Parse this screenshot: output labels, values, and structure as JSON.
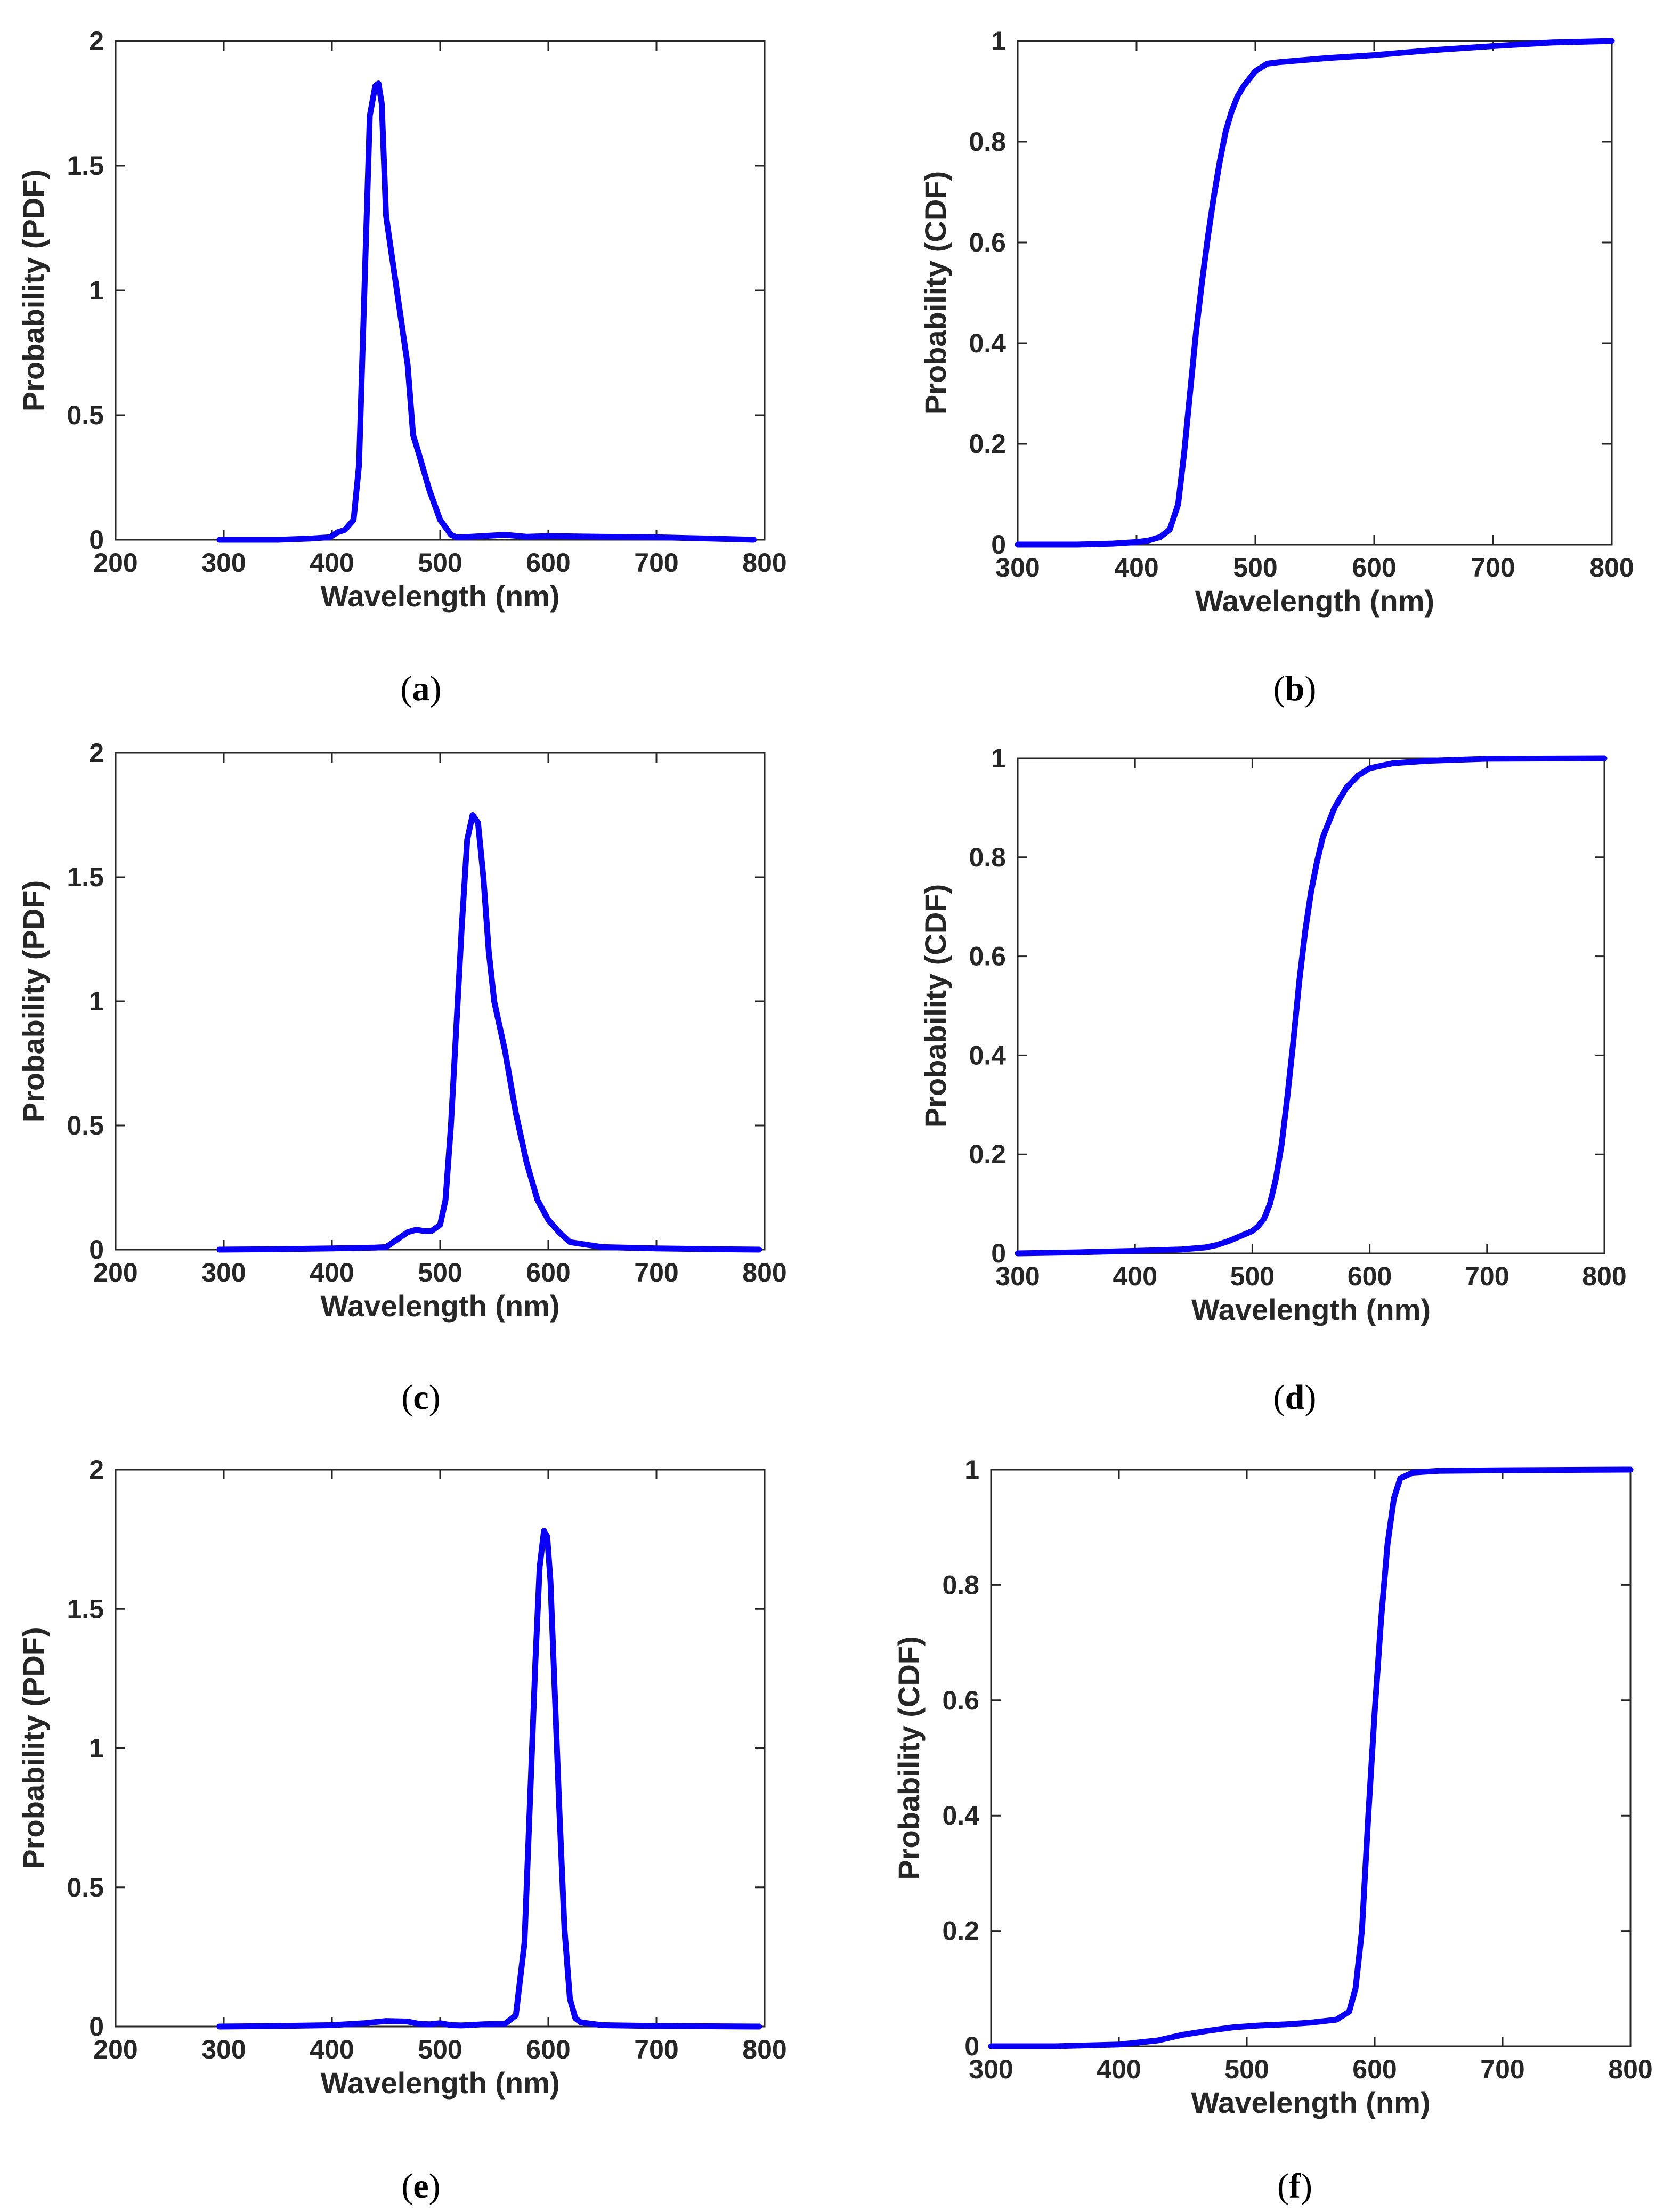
{
  "figure": {
    "panels": [
      {
        "id": "a",
        "caption": {
          "open": "(",
          "letter": "a",
          "close": ")"
        }
      },
      {
        "id": "b",
        "caption": {
          "open": "(",
          "letter": "b",
          "close": ")"
        }
      },
      {
        "id": "c",
        "caption": {
          "open": "(",
          "letter": "c",
          "close": ")"
        }
      },
      {
        "id": "d",
        "caption": {
          "open": "(",
          "letter": "d",
          "close": ")"
        }
      },
      {
        "id": "e",
        "caption": {
          "open": "(",
          "letter": "e",
          "close": ")"
        }
      },
      {
        "id": "f",
        "caption": {
          "open": "(",
          "letter": "f",
          "close": ")"
        }
      }
    ]
  },
  "style": {
    "line_color": "#0a00f5",
    "axis_color": "#262626"
  },
  "chart_data": [
    {
      "panel": "a",
      "type": "line",
      "xlabel": "Wavelength (nm)",
      "ylabel": "Probability (PDF)",
      "xlim": [
        200,
        800
      ],
      "ylim": [
        0,
        2
      ],
      "xticks": [
        200,
        300,
        400,
        500,
        600,
        700,
        800
      ],
      "yticks": [
        0,
        0.5,
        1,
        1.5,
        2
      ],
      "xtick_labels": [
        "200",
        "300",
        "400",
        "500",
        "600",
        "700",
        "800"
      ],
      "ytick_labels": [
        "0",
        "0.5",
        "1",
        "1.5",
        "2"
      ],
      "series": [
        {
          "name": "PDF",
          "x": [
            296,
            350,
            380,
            398,
            405,
            412,
            420,
            425,
            430,
            435,
            440,
            443,
            446,
            450,
            455,
            460,
            465,
            470,
            475,
            480,
            490,
            500,
            510,
            515,
            520,
            540,
            560,
            580,
            600,
            650,
            700,
            750,
            790
          ],
          "y": [
            0.0,
            0.0,
            0.005,
            0.01,
            0.03,
            0.04,
            0.08,
            0.3,
            1.0,
            1.7,
            1.82,
            1.83,
            1.75,
            1.3,
            1.15,
            1.0,
            0.85,
            0.7,
            0.42,
            0.35,
            0.2,
            0.08,
            0.02,
            0.01,
            0.01,
            0.015,
            0.02,
            0.012,
            0.015,
            0.012,
            0.01,
            0.005,
            0.0
          ]
        }
      ]
    },
    {
      "panel": "b",
      "type": "line",
      "xlabel": "Wavelength (nm)",
      "ylabel": "Probability (CDF)",
      "xlim": [
        300,
        800
      ],
      "ylim": [
        0,
        1
      ],
      "xticks": [
        300,
        400,
        500,
        600,
        700,
        800
      ],
      "yticks": [
        0,
        0.2,
        0.4,
        0.6,
        0.8,
        1
      ],
      "xtick_labels": [
        "300",
        "400",
        "500",
        "600",
        "700",
        "800"
      ],
      "ytick_labels": [
        "0",
        "0.2",
        "0.4",
        "0.6",
        "0.8",
        "1"
      ],
      "series": [
        {
          "name": "CDF",
          "x": [
            300,
            350,
            380,
            400,
            410,
            420,
            428,
            435,
            440,
            445,
            450,
            455,
            460,
            465,
            470,
            475,
            480,
            485,
            490,
            500,
            510,
            520,
            540,
            560,
            600,
            650,
            700,
            750,
            800
          ],
          "y": [
            0.0,
            0.0,
            0.002,
            0.005,
            0.008,
            0.015,
            0.03,
            0.08,
            0.18,
            0.3,
            0.42,
            0.52,
            0.61,
            0.69,
            0.76,
            0.82,
            0.86,
            0.89,
            0.91,
            0.94,
            0.955,
            0.958,
            0.962,
            0.966,
            0.972,
            0.982,
            0.99,
            0.997,
            1.0
          ]
        }
      ]
    },
    {
      "panel": "c",
      "type": "line",
      "xlabel": "Wavelength (nm)",
      "ylabel": "Probability (PDF)",
      "xlim": [
        200,
        800
      ],
      "ylim": [
        0,
        2
      ],
      "xticks": [
        200,
        300,
        400,
        500,
        600,
        700,
        800
      ],
      "yticks": [
        0,
        0.5,
        1,
        1.5,
        2
      ],
      "xtick_labels": [
        "200",
        "300",
        "400",
        "500",
        "600",
        "700",
        "800"
      ],
      "ytick_labels": [
        "0",
        "0.5",
        "1",
        "1.5",
        "2"
      ],
      "series": [
        {
          "name": "PDF",
          "x": [
            296,
            350,
            400,
            440,
            450,
            460,
            470,
            478,
            485,
            492,
            500,
            505,
            510,
            515,
            520,
            525,
            530,
            535,
            540,
            545,
            550,
            560,
            570,
            580,
            590,
            600,
            610,
            620,
            650,
            700,
            750,
            795
          ],
          "y": [
            0.0,
            0.002,
            0.005,
            0.008,
            0.01,
            0.04,
            0.07,
            0.08,
            0.075,
            0.075,
            0.1,
            0.2,
            0.5,
            0.9,
            1.3,
            1.65,
            1.75,
            1.72,
            1.5,
            1.2,
            1.0,
            0.8,
            0.55,
            0.35,
            0.2,
            0.12,
            0.07,
            0.03,
            0.01,
            0.005,
            0.002,
            0.0
          ]
        }
      ]
    },
    {
      "panel": "d",
      "type": "line",
      "xlabel": "Wavelength (nm)",
      "ylabel": "Probability (CDF)",
      "xlim": [
        300,
        800
      ],
      "ylim": [
        0,
        1
      ],
      "xticks": [
        300,
        400,
        500,
        600,
        700,
        800
      ],
      "yticks": [
        0,
        0.2,
        0.4,
        0.6,
        0.8,
        1
      ],
      "xtick_labels": [
        "300",
        "400",
        "500",
        "600",
        "700",
        "800"
      ],
      "ytick_labels": [
        "0",
        "0.2",
        "0.4",
        "0.6",
        "0.8",
        "1"
      ],
      "series": [
        {
          "name": "CDF",
          "x": [
            300,
            350,
            400,
            440,
            460,
            470,
            480,
            490,
            500,
            505,
            510,
            515,
            520,
            525,
            530,
            535,
            540,
            545,
            550,
            555,
            560,
            570,
            580,
            590,
            600,
            620,
            650,
            700,
            800
          ],
          "y": [
            0.0,
            0.002,
            0.005,
            0.008,
            0.012,
            0.017,
            0.025,
            0.035,
            0.045,
            0.055,
            0.07,
            0.1,
            0.15,
            0.22,
            0.32,
            0.43,
            0.55,
            0.65,
            0.73,
            0.79,
            0.84,
            0.9,
            0.94,
            0.965,
            0.98,
            0.99,
            0.995,
            0.999,
            1.0
          ]
        }
      ]
    },
    {
      "panel": "e",
      "type": "line",
      "xlabel": "Wavelength (nm)",
      "ylabel": "Probability (PDF)",
      "xlim": [
        200,
        800
      ],
      "ylim": [
        0,
        2
      ],
      "xticks": [
        200,
        300,
        400,
        500,
        600,
        700,
        800
      ],
      "yticks": [
        0,
        0.5,
        1,
        1.5,
        2
      ],
      "xtick_labels": [
        "200",
        "300",
        "400",
        "500",
        "600",
        "700",
        "800"
      ],
      "ytick_labels": [
        "0",
        "0.5",
        "1",
        "1.5",
        "2"
      ],
      "series": [
        {
          "name": "PDF",
          "x": [
            296,
            350,
            400,
            430,
            450,
            470,
            480,
            490,
            500,
            510,
            520,
            540,
            560,
            570,
            578,
            583,
            588,
            592,
            596,
            599,
            602,
            606,
            610,
            615,
            620,
            625,
            630,
            650,
            700,
            750,
            795
          ],
          "y": [
            0.0,
            0.002,
            0.005,
            0.012,
            0.02,
            0.018,
            0.01,
            0.008,
            0.012,
            0.005,
            0.004,
            0.008,
            0.01,
            0.04,
            0.3,
            0.8,
            1.3,
            1.65,
            1.78,
            1.76,
            1.6,
            1.2,
            0.8,
            0.35,
            0.1,
            0.03,
            0.015,
            0.005,
            0.002,
            0.001,
            0.0
          ]
        }
      ]
    },
    {
      "panel": "f",
      "type": "line",
      "xlabel": "Wavelength (nm)",
      "ylabel": "Probability (CDF)",
      "xlim": [
        300,
        800
      ],
      "ylim": [
        0,
        1
      ],
      "xticks": [
        300,
        400,
        500,
        600,
        700,
        800
      ],
      "yticks": [
        0,
        0.2,
        0.4,
        0.6,
        0.8,
        1
      ],
      "xtick_labels": [
        "300",
        "400",
        "500",
        "600",
        "700",
        "800"
      ],
      "ytick_labels": [
        "0",
        "0.2",
        "0.4",
        "0.6",
        "0.8",
        "1"
      ],
      "series": [
        {
          "name": "CDF",
          "x": [
            300,
            350,
            400,
            430,
            450,
            470,
            490,
            510,
            530,
            550,
            570,
            580,
            585,
            590,
            595,
            600,
            605,
            610,
            615,
            620,
            630,
            650,
            700,
            800
          ],
          "y": [
            0.0,
            0.0,
            0.003,
            0.01,
            0.02,
            0.027,
            0.033,
            0.036,
            0.038,
            0.041,
            0.046,
            0.06,
            0.1,
            0.2,
            0.4,
            0.58,
            0.74,
            0.87,
            0.95,
            0.985,
            0.995,
            0.998,
            0.999,
            1.0
          ]
        }
      ]
    }
  ]
}
